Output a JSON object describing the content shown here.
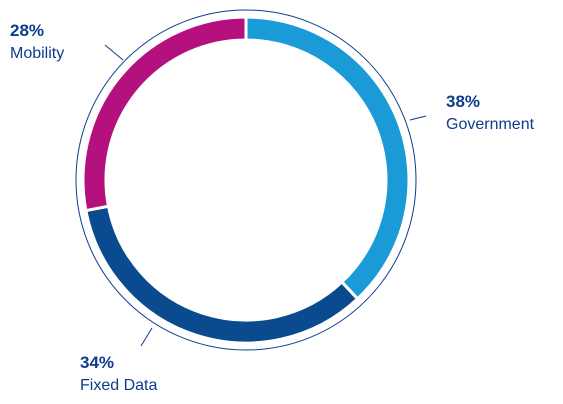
{
  "chart_data": {
    "type": "pie",
    "categories": [
      "Government",
      "Fixed Data",
      "Mobility"
    ],
    "values": [
      38,
      34,
      28
    ],
    "value_labels": [
      "38%",
      "34%",
      "28%"
    ],
    "colors": [
      "#1a9ad6",
      "#0a4a8f",
      "#b5117e"
    ]
  }
}
